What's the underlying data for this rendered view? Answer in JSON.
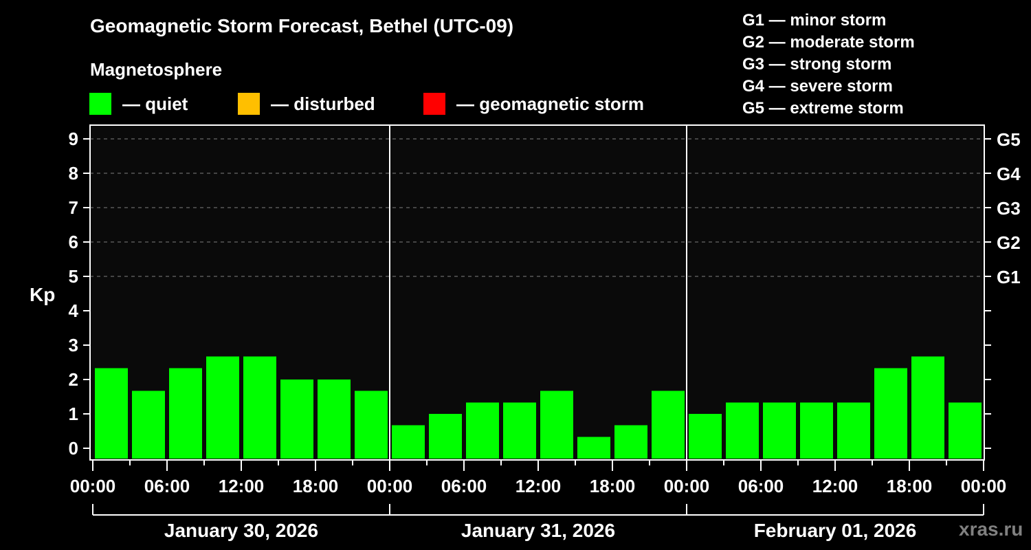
{
  "header": {
    "title": "Geomagnetic Storm Forecast, Bethel (UTC-09)",
    "subtitle": "Magnetosphere"
  },
  "legend": {
    "items": [
      {
        "label": "— quiet",
        "color": "#00FF00",
        "x": 130
      },
      {
        "label": "— disturbed",
        "color": "#FFBF00",
        "x": 346
      },
      {
        "label": "— geomagnetic storm",
        "color": "#FF0000",
        "x": 616
      }
    ]
  },
  "storm_scale": [
    "G1 — minor storm",
    "G2 — moderate storm",
    "G3 — strong storm",
    "G4 — severe storm",
    "G5 — extreme storm"
  ],
  "watermark": "xras.ru",
  "chart_data": {
    "type": "bar",
    "title": "Geomagnetic Storm Forecast, Bethel (UTC-09)",
    "xlabel": "",
    "ylabel": "Kp",
    "ylim": [
      -0.3,
      9.6
    ],
    "yticks": [
      0,
      1,
      2,
      3,
      4,
      5,
      6,
      7,
      8,
      9
    ],
    "right_ticks": [
      {
        "value": 5,
        "label": "G1"
      },
      {
        "value": 6,
        "label": "G2"
      },
      {
        "value": 7,
        "label": "G3"
      },
      {
        "value": 8,
        "label": "G4"
      },
      {
        "value": 9,
        "label": "G5"
      }
    ],
    "grid": {
      "horizontal_dashed_at": [
        5,
        6,
        7,
        8,
        9
      ]
    },
    "interval_hours": 3,
    "xtick_labels": [
      "00:00",
      "06:00",
      "12:00",
      "18:00"
    ],
    "days": [
      {
        "date": "January 30, 2026",
        "categories": [
          "00:00",
          "03:00",
          "06:00",
          "09:00",
          "12:00",
          "15:00",
          "18:00",
          "21:00"
        ],
        "values": [
          2.33,
          1.67,
          2.33,
          2.67,
          2.67,
          2.0,
          2.0,
          1.67
        ],
        "status": [
          "quiet",
          "quiet",
          "quiet",
          "quiet",
          "quiet",
          "quiet",
          "quiet",
          "quiet"
        ]
      },
      {
        "date": "January 31, 2026",
        "categories": [
          "00:00",
          "03:00",
          "06:00",
          "09:00",
          "12:00",
          "15:00",
          "18:00",
          "21:00"
        ],
        "values": [
          0.67,
          1.0,
          1.33,
          1.33,
          1.67,
          0.33,
          0.67,
          1.67
        ],
        "status": [
          "quiet",
          "quiet",
          "quiet",
          "quiet",
          "quiet",
          "quiet",
          "quiet",
          "quiet"
        ]
      },
      {
        "date": "February 01, 2026",
        "categories": [
          "00:00",
          "03:00",
          "06:00",
          "09:00",
          "12:00",
          "15:00",
          "18:00",
          "21:00"
        ],
        "values": [
          1.0,
          1.33,
          1.33,
          1.33,
          1.33,
          2.33,
          2.67,
          1.33
        ],
        "status": [
          "quiet",
          "quiet",
          "quiet",
          "quiet",
          "quiet",
          "quiet",
          "quiet",
          "quiet"
        ]
      }
    ],
    "colors": {
      "quiet": "#00FF00",
      "disturbed": "#FFBF00",
      "storm": "#FF0000"
    },
    "legend_position": "top"
  }
}
